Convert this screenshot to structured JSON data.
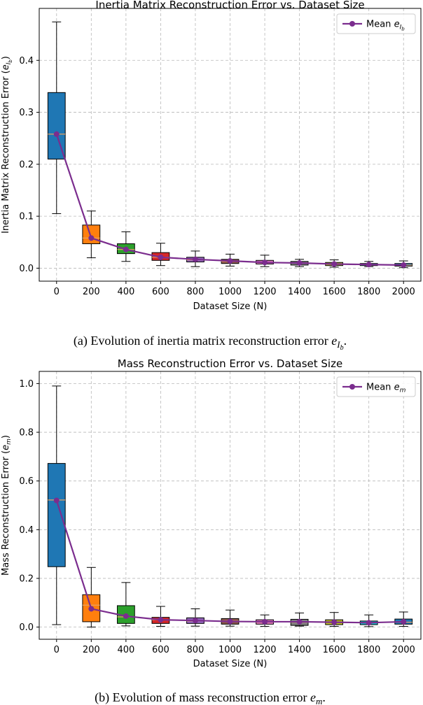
{
  "chart_data": [
    {
      "type": "box",
      "title": "Inertia Matrix Reconstruction Error vs. Dataset Size",
      "xlabel": "Dataset Size (N)",
      "ylabel_text": "Inertia Matrix Reconstruction Error (",
      "ylabel_var": "e",
      "ylabel_sub": "I",
      "ylabel_subsub": "b",
      "ylabel_close": ")",
      "legend_label": "Mean",
      "legend_var": "e",
      "legend_sub": "I",
      "legend_subsub": "b",
      "legend_position": "top-right",
      "ylim": [
        -0.025,
        0.5
      ],
      "yticks": [
        0.0,
        0.1,
        0.2,
        0.3,
        0.4
      ],
      "ytick_labels": [
        "0.0",
        "0.1",
        "0.2",
        "0.3",
        "0.4"
      ],
      "categories": [
        "0",
        "200",
        "400",
        "600",
        "800",
        "1000",
        "1200",
        "1400",
        "1600",
        "1800",
        "2000"
      ],
      "box_colors": [
        "#1f77b4",
        "#ff7f0e",
        "#2ca02c",
        "#d62728",
        "#9467bd",
        "#8c564b",
        "#e377c2",
        "#7f7f7f",
        "#bcbd22",
        "#17becf",
        "#1f77b4"
      ],
      "boxes": [
        {
          "whisker_low": 0.105,
          "q1": 0.21,
          "median": 0.258,
          "q3": 0.338,
          "whisker_high": 0.474
        },
        {
          "whisker_low": 0.02,
          "q1": 0.047,
          "median": 0.058,
          "q3": 0.083,
          "whisker_high": 0.11
        },
        {
          "whisker_low": 0.013,
          "q1": 0.028,
          "median": 0.036,
          "q3": 0.047,
          "whisker_high": 0.07
        },
        {
          "whisker_low": 0.005,
          "q1": 0.015,
          "median": 0.021,
          "q3": 0.03,
          "whisker_high": 0.048
        },
        {
          "whisker_low": 0.003,
          "q1": 0.012,
          "median": 0.016,
          "q3": 0.021,
          "whisker_high": 0.033
        },
        {
          "whisker_low": 0.004,
          "q1": 0.009,
          "median": 0.013,
          "q3": 0.017,
          "whisker_high": 0.027
        },
        {
          "whisker_low": 0.003,
          "q1": 0.008,
          "median": 0.011,
          "q3": 0.015,
          "whisker_high": 0.025
        },
        {
          "whisker_low": 0.003,
          "q1": 0.006,
          "median": 0.01,
          "q3": 0.013,
          "whisker_high": 0.017
        },
        {
          "whisker_low": 0.002,
          "q1": 0.005,
          "median": 0.008,
          "q3": 0.011,
          "whisker_high": 0.016
        },
        {
          "whisker_low": 0.003,
          "q1": 0.005,
          "median": 0.007,
          "q3": 0.009,
          "whisker_high": 0.013
        },
        {
          "whisker_low": 0.001,
          "q1": 0.004,
          "median": 0.006,
          "q3": 0.009,
          "whisker_high": 0.014
        }
      ],
      "means": [
        0.258,
        0.058,
        0.036,
        0.021,
        0.017,
        0.014,
        0.011,
        0.01,
        0.008,
        0.007,
        0.006
      ],
      "caption_text": "(a) Evolution of inertia matrix reconstruction error ",
      "caption_var": "e",
      "caption_sub": "I",
      "caption_subsub": "b",
      "caption_end": "."
    },
    {
      "type": "box",
      "title": "Mass Reconstruction Error vs. Dataset Size",
      "xlabel": "Dataset Size (N)",
      "ylabel_text": "Mass Reconstruction Error (",
      "ylabel_var": "e",
      "ylabel_sub": "m",
      "ylabel_subsub": "",
      "ylabel_close": ")",
      "legend_label": "Mean",
      "legend_var": "e",
      "legend_sub": "m",
      "legend_subsub": "",
      "legend_position": "top-right",
      "ylim": [
        -0.05,
        1.05
      ],
      "yticks": [
        0.0,
        0.2,
        0.4,
        0.6,
        0.8,
        1.0
      ],
      "ytick_labels": [
        "0.0",
        "0.2",
        "0.4",
        "0.6",
        "0.8",
        "1.0"
      ],
      "categories": [
        "0",
        "200",
        "400",
        "600",
        "800",
        "1000",
        "1200",
        "1400",
        "1600",
        "1800",
        "2000"
      ],
      "box_colors": [
        "#1f77b4",
        "#ff7f0e",
        "#2ca02c",
        "#d62728",
        "#9467bd",
        "#8c564b",
        "#e377c2",
        "#7f7f7f",
        "#bcbd22",
        "#17becf",
        "#1f77b4"
      ],
      "boxes": [
        {
          "whisker_low": 0.01,
          "q1": 0.248,
          "median": 0.522,
          "q3": 0.672,
          "whisker_high": 0.99
        },
        {
          "whisker_low": 0.0,
          "q1": 0.022,
          "median": 0.09,
          "q3": 0.133,
          "whisker_high": 0.245
        },
        {
          "whisker_low": 0.005,
          "q1": 0.015,
          "median": 0.042,
          "q3": 0.088,
          "whisker_high": 0.183
        },
        {
          "whisker_low": 0.003,
          "q1": 0.015,
          "median": 0.03,
          "q3": 0.04,
          "whisker_high": 0.085
        },
        {
          "whisker_low": 0.004,
          "q1": 0.015,
          "median": 0.025,
          "q3": 0.038,
          "whisker_high": 0.075
        },
        {
          "whisker_low": 0.004,
          "q1": 0.012,
          "median": 0.025,
          "q3": 0.035,
          "whisker_high": 0.07
        },
        {
          "whisker_low": 0.003,
          "q1": 0.012,
          "median": 0.02,
          "q3": 0.03,
          "whisker_high": 0.05
        },
        {
          "whisker_low": 0.004,
          "q1": 0.007,
          "median": 0.02,
          "q3": 0.032,
          "whisker_high": 0.058
        },
        {
          "whisker_low": 0.003,
          "q1": 0.01,
          "median": 0.02,
          "q3": 0.03,
          "whisker_high": 0.06
        },
        {
          "whisker_low": 0.002,
          "q1": 0.01,
          "median": 0.018,
          "q3": 0.025,
          "whisker_high": 0.05
        },
        {
          "whisker_low": 0.003,
          "q1": 0.012,
          "median": 0.02,
          "q3": 0.033,
          "whisker_high": 0.062
        }
      ],
      "means": [
        0.52,
        0.075,
        0.045,
        0.03,
        0.027,
        0.023,
        0.022,
        0.022,
        0.02,
        0.018,
        0.022
      ],
      "caption_text": "(b) Evolution of mass reconstruction error ",
      "caption_var": "e",
      "caption_sub": "m",
      "caption_subsub": "",
      "caption_end": "."
    }
  ],
  "style": {
    "mean_color": "#7b2d8e",
    "median_color": "#e8a060",
    "grid_color": "#b8b8b8"
  }
}
